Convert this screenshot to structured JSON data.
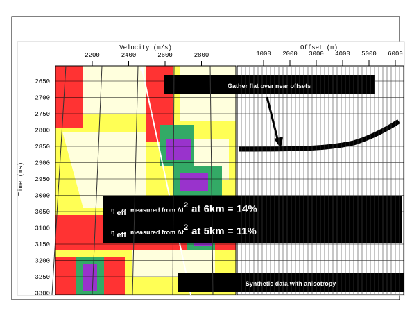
{
  "velocity_panel": {
    "axis_title": "Velocity (m/s)",
    "x_ticks": [
      "2200",
      "2400",
      "2600",
      "2800"
    ],
    "y_title": "Time (ms)",
    "y_ticks": [
      "2650",
      "2700",
      "2750",
      "2800",
      "2850",
      "2900",
      "2950",
      "3000",
      "3050",
      "3100",
      "3150",
      "3200",
      "3250",
      "3300"
    ]
  },
  "gather_panel": {
    "axis_title": "Offset (m)",
    "x_ticks": [
      "1000",
      "2000",
      "3000",
      "4000",
      "5000",
      "6000"
    ]
  },
  "annotations": {
    "gather_flat": "Gather flat over near offsets",
    "eta_6km": {
      "symbol": "η",
      "subscript": "eff",
      "text": "measured from Δt",
      "superscript": "2",
      "tail": "at 6km = 14%"
    },
    "eta_5km": {
      "symbol": "η",
      "subscript": "eff",
      "text": "measured from Δt",
      "superscript": "2",
      "tail": "at 5km = 11%"
    },
    "synthetic": "Synthetic data with anisotropy"
  }
}
